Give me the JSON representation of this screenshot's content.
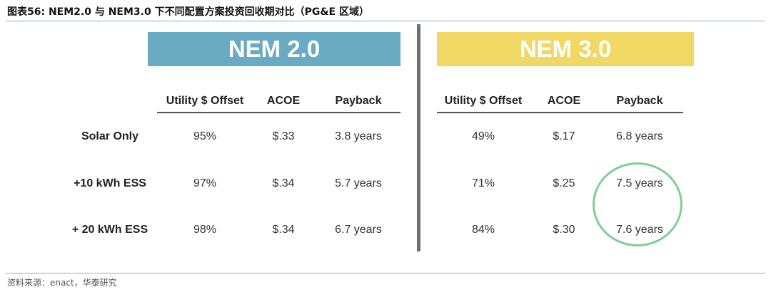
{
  "figure": {
    "title": "图表56: NEM2.0 与 NEM3.0 下不同配置方案投资回收期对比（PG&E 区域）",
    "source": "资料来源：enact，华泰研究"
  },
  "sections": [
    {
      "banner": "NEM 2.0",
      "color": "#6aaac3"
    },
    {
      "banner": "NEM 3.0",
      "color": "#f1d865"
    }
  ],
  "columns": [
    "Utility $ Offset",
    "ACOE",
    "Payback"
  ],
  "rows": [
    {
      "label": "Solar Only",
      "nem2": [
        "95%",
        "$.33",
        "3.8 years"
      ],
      "nem3": [
        "49%",
        "$.17",
        "6.8 years"
      ]
    },
    {
      "label": "+10 kWh ESS",
      "nem2": [
        "97%",
        "$.34",
        "5.7 years"
      ],
      "nem3": [
        "71%",
        "$.25",
        "7.5 years"
      ]
    },
    {
      "label": "+ 20 kWh ESS",
      "nem2": [
        "98%",
        "$.34",
        "6.7 years"
      ],
      "nem3": [
        "84%",
        "$.30",
        "7.6 years"
      ]
    }
  ],
  "highlight_color": "#7fcf95"
}
